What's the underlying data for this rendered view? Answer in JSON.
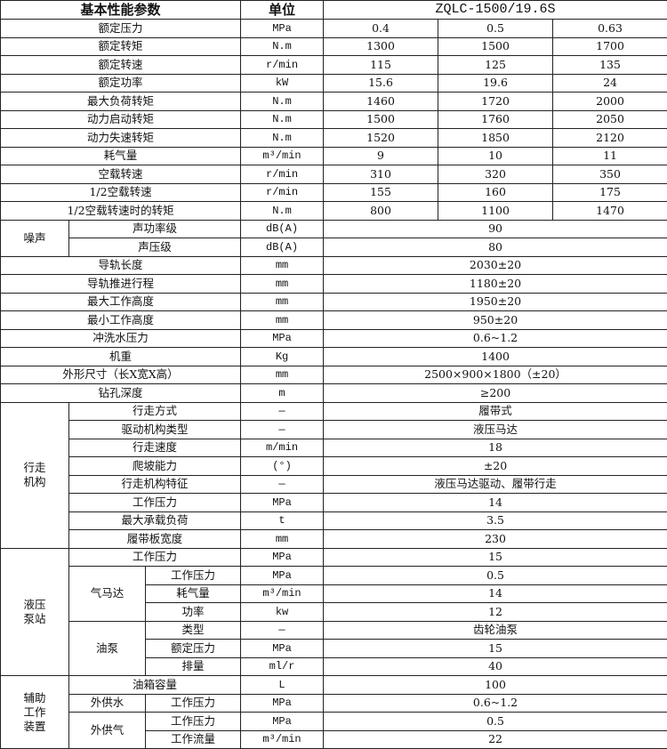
{
  "header": {
    "param": "基本性能参数",
    "unit": "单位",
    "model": "ZQLC-1500/19.6S"
  },
  "performance": [
    {
      "name": "额定压力",
      "unit": "MPa",
      "values": [
        "0.4",
        "0.5",
        "0.63"
      ]
    },
    {
      "name": "额定转矩",
      "unit": "N.m",
      "values": [
        "1300",
        "1500",
        "1700"
      ]
    },
    {
      "name": "额定转速",
      "unit": "r/min",
      "values": [
        "115",
        "125",
        "135"
      ]
    },
    {
      "name": "额定功率",
      "unit": "kW",
      "values": [
        "15.6",
        "19.6",
        "24"
      ]
    },
    {
      "name": "最大负荷转矩",
      "unit": "N.m",
      "values": [
        "1460",
        "1720",
        "2000"
      ]
    },
    {
      "name": "动力启动转矩",
      "unit": "N.m",
      "values": [
        "1500",
        "1760",
        "2050"
      ]
    },
    {
      "name": "动力失速转矩",
      "unit": "N.m",
      "values": [
        "1520",
        "1850",
        "2120"
      ]
    },
    {
      "name": "耗气量",
      "unit": "m³/min",
      "values": [
        "9",
        "10",
        "11"
      ]
    },
    {
      "name": "空载转速",
      "unit": "r/min",
      "values": [
        "310",
        "320",
        "350"
      ]
    },
    {
      "name": "1/2空载转速",
      "unit": "r/min",
      "values": [
        "155",
        "160",
        "175"
      ]
    },
    {
      "name": "1/2空载转速时的转矩",
      "unit": "N.m",
      "values": [
        "800",
        "1100",
        "1470"
      ]
    }
  ],
  "noise": {
    "group": "噪声",
    "items": [
      {
        "name": "声功率级",
        "unit": "dB(A)",
        "value": "90"
      },
      {
        "name": "声压级",
        "unit": "dB(A)",
        "value": "80"
      }
    ]
  },
  "general": [
    {
      "name": "导轨长度",
      "unit": "mm",
      "value": "2030±20"
    },
    {
      "name": "导轨推进行程",
      "unit": "mm",
      "value": "1180±20"
    },
    {
      "name": "最大工作高度",
      "unit": "mm",
      "value": "1950±20"
    },
    {
      "name": "最小工作高度",
      "unit": "mm",
      "value": "950±20"
    },
    {
      "name": "冲洗水压力",
      "unit": "MPa",
      "value": "0.6~1.2"
    },
    {
      "name": "机重",
      "unit": "Kg",
      "value": "1400"
    },
    {
      "name": "外形尺寸（长X宽X高）",
      "unit": "mm",
      "value": "2500×900×1800（±20）"
    },
    {
      "name": "钻孔深度",
      "unit": "m",
      "value": "≥200"
    }
  ],
  "walking": {
    "group": "行走机构",
    "items": [
      {
        "name": "行走方式",
        "unit": "—",
        "value": "履带式"
      },
      {
        "name": "驱动机构类型",
        "unit": "—",
        "value": "液压马达"
      },
      {
        "name": "行走速度",
        "unit": "m/min",
        "value": "18"
      },
      {
        "name": "爬坡能力",
        "unit": "(°)",
        "value": "±20"
      },
      {
        "name": "行走机构特征",
        "unit": "—",
        "value": "液压马达驱动、履带行走"
      },
      {
        "name": "工作压力",
        "unit": "MPa",
        "value": "14"
      },
      {
        "name": "最大承载负荷",
        "unit": "t",
        "value": "3.5"
      },
      {
        "name": "履带板宽度",
        "unit": "mm",
        "value": "230"
      }
    ]
  },
  "hydraulic": {
    "group": "液压泵站",
    "working_pressure": {
      "name": "工作压力",
      "unit": "MPa",
      "value": "15"
    },
    "air_motor": {
      "label": "气马达",
      "items": [
        {
          "name": "工作压力",
          "unit": "MPa",
          "value": "0.5"
        },
        {
          "name": "耗气量",
          "unit": "m³/min",
          "value": "14"
        },
        {
          "name": "功率",
          "unit": "kw",
          "value": "12"
        }
      ]
    },
    "oil_pump": {
      "label": "油泵",
      "items": [
        {
          "name": "类型",
          "unit": "—",
          "value": "齿轮油泵"
        },
        {
          "name": "额定压力",
          "unit": "MPa",
          "value": "15"
        },
        {
          "name": "排量",
          "unit": "ml/r",
          "value": "40"
        }
      ]
    }
  },
  "auxiliary": {
    "group": "辅助工作装置",
    "oil_tank": {
      "name": "油箱容量",
      "unit": "L",
      "value": "100"
    },
    "water": {
      "label": "外供水",
      "items": [
        {
          "name": "工作压力",
          "unit": "MPa",
          "value": "0.6~1.2"
        }
      ]
    },
    "air": {
      "label": "外供气",
      "items": [
        {
          "name": "工作压力",
          "unit": "MPa",
          "value": "0.5"
        },
        {
          "name": "工作流量",
          "unit": "m³/min",
          "value": "22"
        }
      ]
    }
  }
}
